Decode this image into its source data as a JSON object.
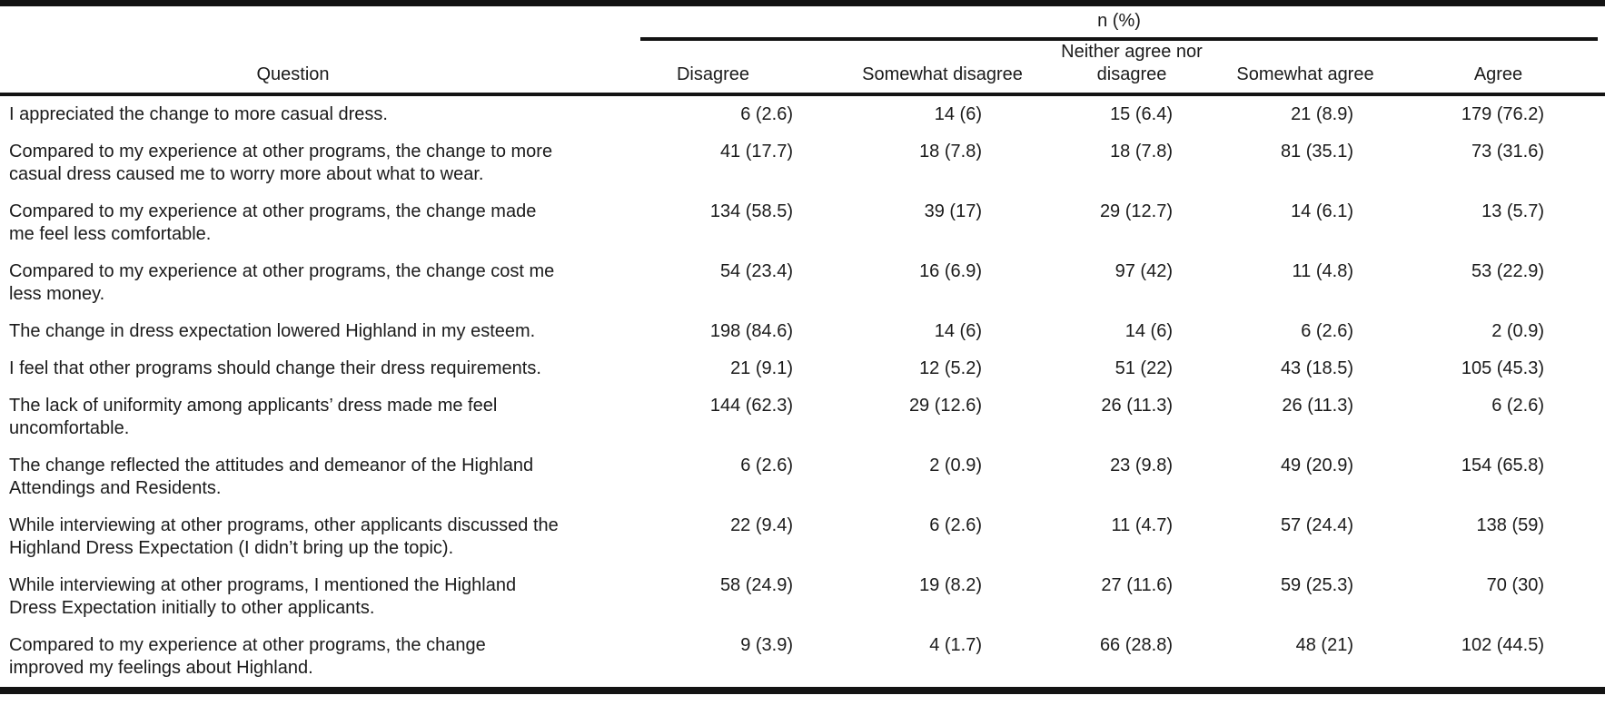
{
  "table": {
    "spanner_label": "n (%)",
    "question_header": "Question",
    "columns": [
      "Disagree",
      "Somewhat disagree",
      "Neither agree nor disagree",
      "Somewhat agree",
      "Agree"
    ],
    "rows": [
      {
        "question": "I appreciated the change to more casual dress.",
        "values": [
          "6 (2.6)",
          "14 (6)",
          "15 (6.4)",
          "21 (8.9)",
          "179 (76.2)"
        ]
      },
      {
        "question": "Compared to my experience at other programs, the change to more casual dress caused me to worry more about what to wear.",
        "values": [
          "41 (17.7)",
          "18 (7.8)",
          "18 (7.8)",
          "81 (35.1)",
          "73 (31.6)"
        ]
      },
      {
        "question": "Compared to my experience at other programs, the change made me feel less comfortable.",
        "values": [
          "134 (58.5)",
          "39 (17)",
          "29 (12.7)",
          "14 (6.1)",
          "13 (5.7)"
        ]
      },
      {
        "question": "Compared to my experience at other programs, the change cost me less money.",
        "values": [
          "54 (23.4)",
          "16 (6.9)",
          "97 (42)",
          "11 (4.8)",
          "53 (22.9)"
        ]
      },
      {
        "question": "The change in dress expectation lowered Highland in my esteem.",
        "values": [
          "198 (84.6)",
          "14 (6)",
          "14 (6)",
          "6 (2.6)",
          "2 (0.9)"
        ]
      },
      {
        "question": "I feel that other programs should change their dress requirements.",
        "values": [
          "21 (9.1)",
          "12 (5.2)",
          "51 (22)",
          "43 (18.5)",
          "105 (45.3)"
        ]
      },
      {
        "question": "The lack of uniformity among applicants’ dress made me feel uncomfortable.",
        "values": [
          "144 (62.3)",
          "29 (12.6)",
          "26 (11.3)",
          "26 (11.3)",
          "6 (2.6)"
        ]
      },
      {
        "question": "The change reflected the attitudes and demeanor of the Highland Attendings and Residents.",
        "values": [
          "6 (2.6)",
          "2 (0.9)",
          "23 (9.8)",
          "49 (20.9)",
          "154 (65.8)"
        ]
      },
      {
        "question": "While interviewing at other programs, other applicants discussed the Highland Dress Expectation (I didn’t bring up the topic).",
        "values": [
          "22 (9.4)",
          "6 (2.6)",
          "11 (4.7)",
          "57 (24.4)",
          "138 (59)"
        ]
      },
      {
        "question": "While interviewing at other programs, I mentioned the Highland Dress Expectation initially to other applicants.",
        "values": [
          "58 (24.9)",
          "19 (8.2)",
          "27 (11.6)",
          "59 (25.3)",
          "70 (30)"
        ]
      },
      {
        "question": "Compared to my experience at other programs, the change improved my feelings about Highland.",
        "values": [
          "9 (3.9)",
          "4 (1.7)",
          "66 (28.8)",
          "48 (21)",
          "102 (44.5)"
        ]
      }
    ]
  }
}
